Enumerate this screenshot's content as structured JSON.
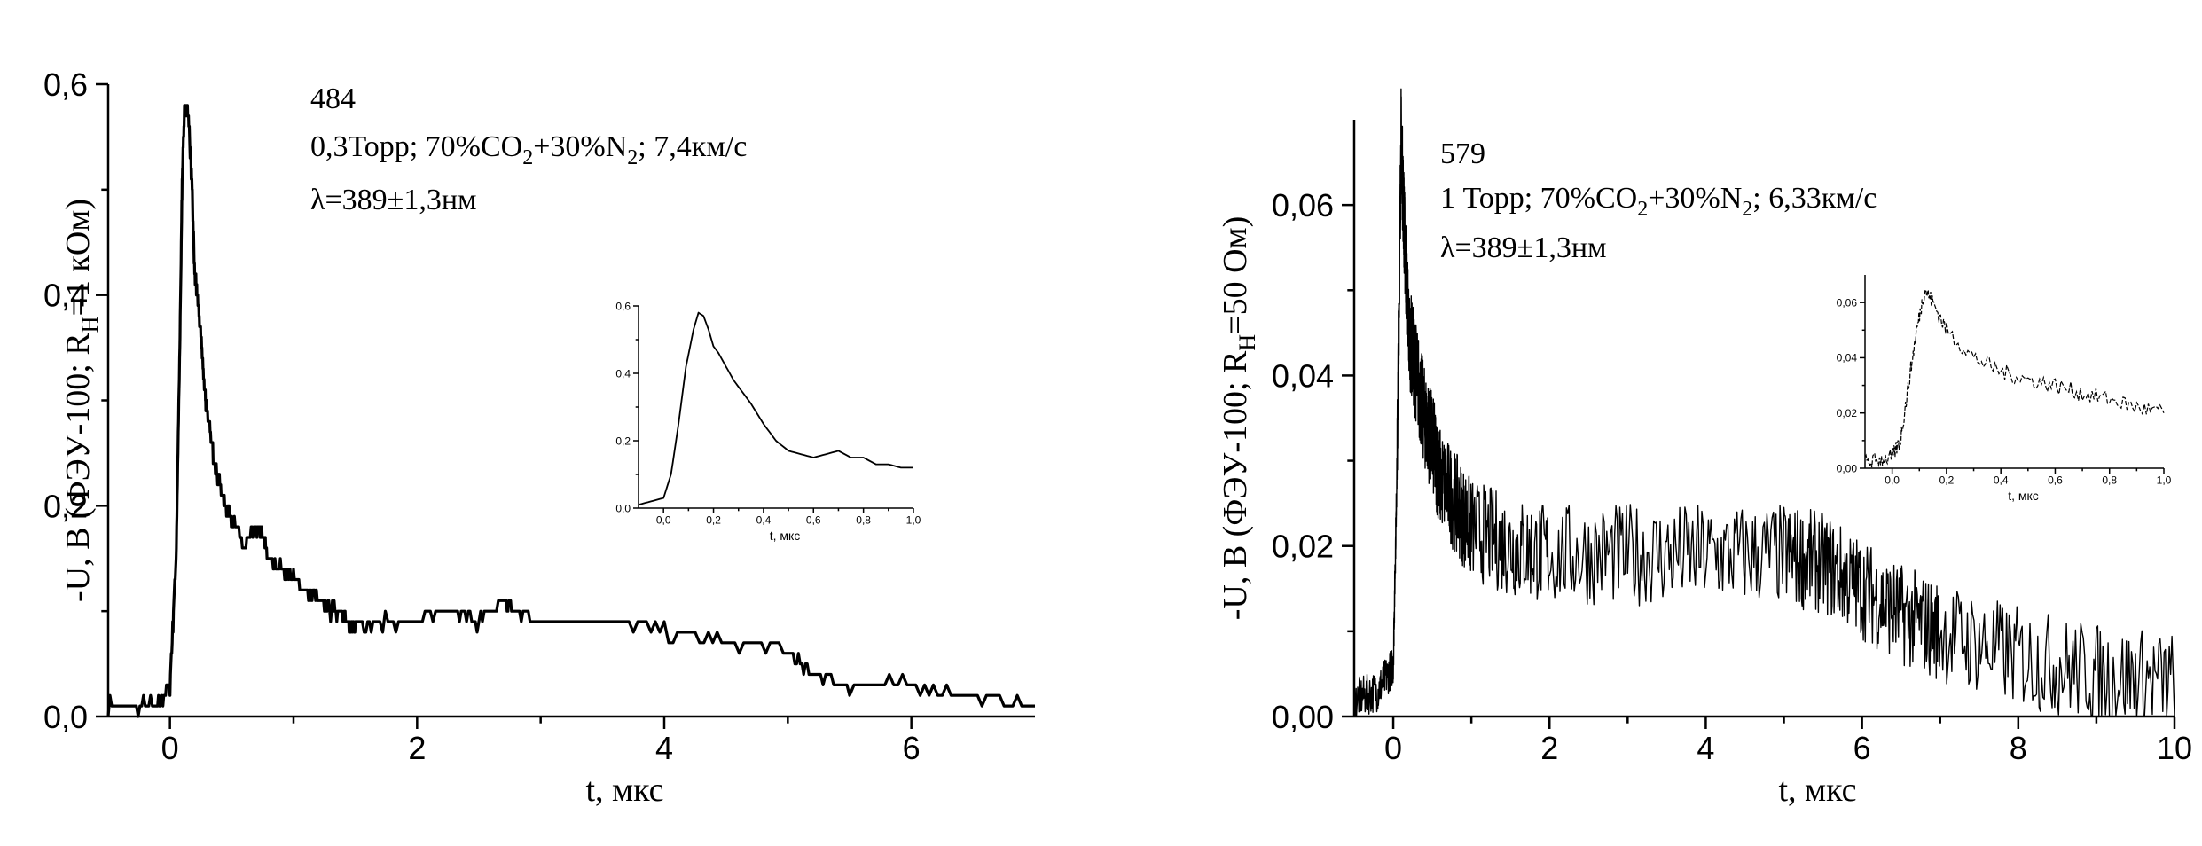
{
  "chart_data": [
    {
      "type": "line",
      "id": "left",
      "xlabel": "t, мкс",
      "ylabel": {
        "main": "-U, В (ФЭУ-100; R",
        "sub": "Н",
        "tail": "=1 кОм)"
      },
      "xlim": [
        -0.5,
        7
      ],
      "ylim": [
        0,
        0.6
      ],
      "xticks": [
        0,
        2,
        4,
        6
      ],
      "xtick_labels": [
        "0",
        "2",
        "4",
        "6"
      ],
      "yticks": [
        0,
        0.2,
        0.4,
        0.6
      ],
      "ytick_labels": [
        "0,0",
        "0,2",
        "0,4",
        "0,6"
      ],
      "annotations": {
        "shot": "484",
        "conditions": {
          "a": "0,3Торр; 70%CO",
          "s1": "2",
          "b": "+30%N",
          "s2": "2",
          "c": "; 7,4км/с"
        },
        "wavelength": "λ=389±1,3нм"
      },
      "series": [
        {
          "x": [
            -0.5,
            -0.3,
            -0.1,
            0.0,
            0.05,
            0.08,
            0.1,
            0.12,
            0.15,
            0.18,
            0.2,
            0.22,
            0.25,
            0.28,
            0.3,
            0.35,
            0.4,
            0.45,
            0.5,
            0.6,
            0.7,
            0.75,
            0.8,
            0.9,
            1.0,
            1.1,
            1.2,
            1.3,
            1.4,
            1.45,
            1.5,
            1.7,
            2.0,
            2.3,
            2.5,
            2.7,
            2.8,
            3.0,
            3.5,
            4.0,
            4.5,
            5.0,
            5.2,
            5.5,
            6.0,
            6.5,
            7.0
          ],
          "y": [
            0.01,
            0.01,
            0.01,
            0.03,
            0.15,
            0.35,
            0.52,
            0.58,
            0.57,
            0.5,
            0.42,
            0.4,
            0.36,
            0.31,
            0.29,
            0.25,
            0.22,
            0.2,
            0.19,
            0.16,
            0.18,
            0.17,
            0.15,
            0.14,
            0.13,
            0.12,
            0.11,
            0.1,
            0.1,
            0.08,
            0.09,
            0.09,
            0.09,
            0.1,
            0.09,
            0.11,
            0.1,
            0.09,
            0.09,
            0.08,
            0.07,
            0.06,
            0.04,
            0.03,
            0.03,
            0.02,
            0.01
          ]
        }
      ],
      "inset": {
        "xlim": [
          -0.1,
          1.0
        ],
        "ylim": [
          0,
          0.6
        ],
        "xlabel": "t, мкс",
        "xticks": [
          0,
          0.2,
          0.4,
          0.6,
          0.8,
          1.0
        ],
        "xtick_labels": [
          "0,0",
          "0,2",
          "0,4",
          "0,6",
          "0,8",
          "1,0"
        ],
        "yticks": [
          0,
          0.2,
          0.4,
          0.6
        ],
        "ytick_labels": [
          "0,0",
          "0,2",
          "0,4",
          "0,6"
        ],
        "x": [
          -0.1,
          -0.05,
          0.0,
          0.03,
          0.06,
          0.09,
          0.12,
          0.14,
          0.16,
          0.18,
          0.2,
          0.22,
          0.25,
          0.28,
          0.3,
          0.35,
          0.4,
          0.45,
          0.5,
          0.55,
          0.6,
          0.65,
          0.7,
          0.75,
          0.8,
          0.85,
          0.9,
          0.95,
          1.0
        ],
        "y": [
          0.01,
          0.02,
          0.03,
          0.1,
          0.25,
          0.42,
          0.53,
          0.58,
          0.57,
          0.53,
          0.48,
          0.46,
          0.42,
          0.38,
          0.36,
          0.31,
          0.25,
          0.2,
          0.17,
          0.16,
          0.15,
          0.16,
          0.17,
          0.15,
          0.15,
          0.13,
          0.13,
          0.12,
          0.12
        ]
      }
    },
    {
      "type": "line",
      "id": "right",
      "xlabel": "t, мкс",
      "ylabel": {
        "main": "-U, В (ФЭУ-100; R",
        "sub": "Н",
        "tail": "=50 Ом)"
      },
      "xlim": [
        -0.5,
        10
      ],
      "ylim": [
        0,
        0.07
      ],
      "xticks": [
        0,
        2,
        4,
        6,
        8,
        10
      ],
      "xtick_labels": [
        "0",
        "2",
        "4",
        "6",
        "8",
        "10"
      ],
      "yticks": [
        0,
        0.02,
        0.04,
        0.06
      ],
      "ytick_labels": [
        "0,00",
        "0,02",
        "0,04",
        "0,06"
      ],
      "annotations": {
        "shot": "579",
        "conditions": {
          "a": "1 Торр; 70%CO",
          "s1": "2",
          "b": "+30%N",
          "s2": "2",
          "c": "; 6,33км/с"
        },
        "wavelength": "λ=389±1,3нм"
      },
      "series": [
        {
          "noise_amplitude": 0.006,
          "x": [
            -0.5,
            -0.2,
            0.0,
            0.05,
            0.1,
            0.15,
            0.2,
            0.3,
            0.4,
            0.5,
            0.6,
            0.8,
            1.0,
            1.5,
            2.0,
            3.0,
            4.0,
            5.0,
            5.5,
            6.0,
            6.5,
            7.0,
            8.0,
            9.0,
            10.0
          ],
          "y": [
            0.002,
            0.003,
            0.006,
            0.03,
            0.068,
            0.055,
            0.045,
            0.04,
            0.035,
            0.032,
            0.028,
            0.025,
            0.022,
            0.02,
            0.019,
            0.019,
            0.019,
            0.019,
            0.018,
            0.015,
            0.012,
            0.01,
            0.007,
            0.005,
            0.004
          ]
        }
      ],
      "inset": {
        "xlim": [
          -0.1,
          1.0
        ],
        "ylim": [
          0,
          0.07
        ],
        "xlabel": "t, мкс",
        "xticks": [
          0,
          0.2,
          0.4,
          0.6,
          0.8,
          1.0
        ],
        "xtick_labels": [
          "0,0",
          "0,2",
          "0,4",
          "0,6",
          "0,8",
          "1,0"
        ],
        "yticks": [
          0,
          0.02,
          0.04,
          0.06
        ],
        "ytick_labels": [
          "0,00",
          "0,02",
          "0,04",
          "0,06"
        ],
        "noise_amplitude": 0.003,
        "x": [
          -0.1,
          -0.05,
          0.0,
          0.03,
          0.06,
          0.09,
          0.12,
          0.15,
          0.2,
          0.3,
          0.4,
          0.5,
          0.6,
          0.7,
          0.8,
          0.9,
          1.0
        ],
        "y": [
          0.002,
          0.003,
          0.004,
          0.01,
          0.03,
          0.05,
          0.065,
          0.06,
          0.05,
          0.04,
          0.035,
          0.032,
          0.03,
          0.027,
          0.025,
          0.022,
          0.02
        ]
      }
    }
  ]
}
